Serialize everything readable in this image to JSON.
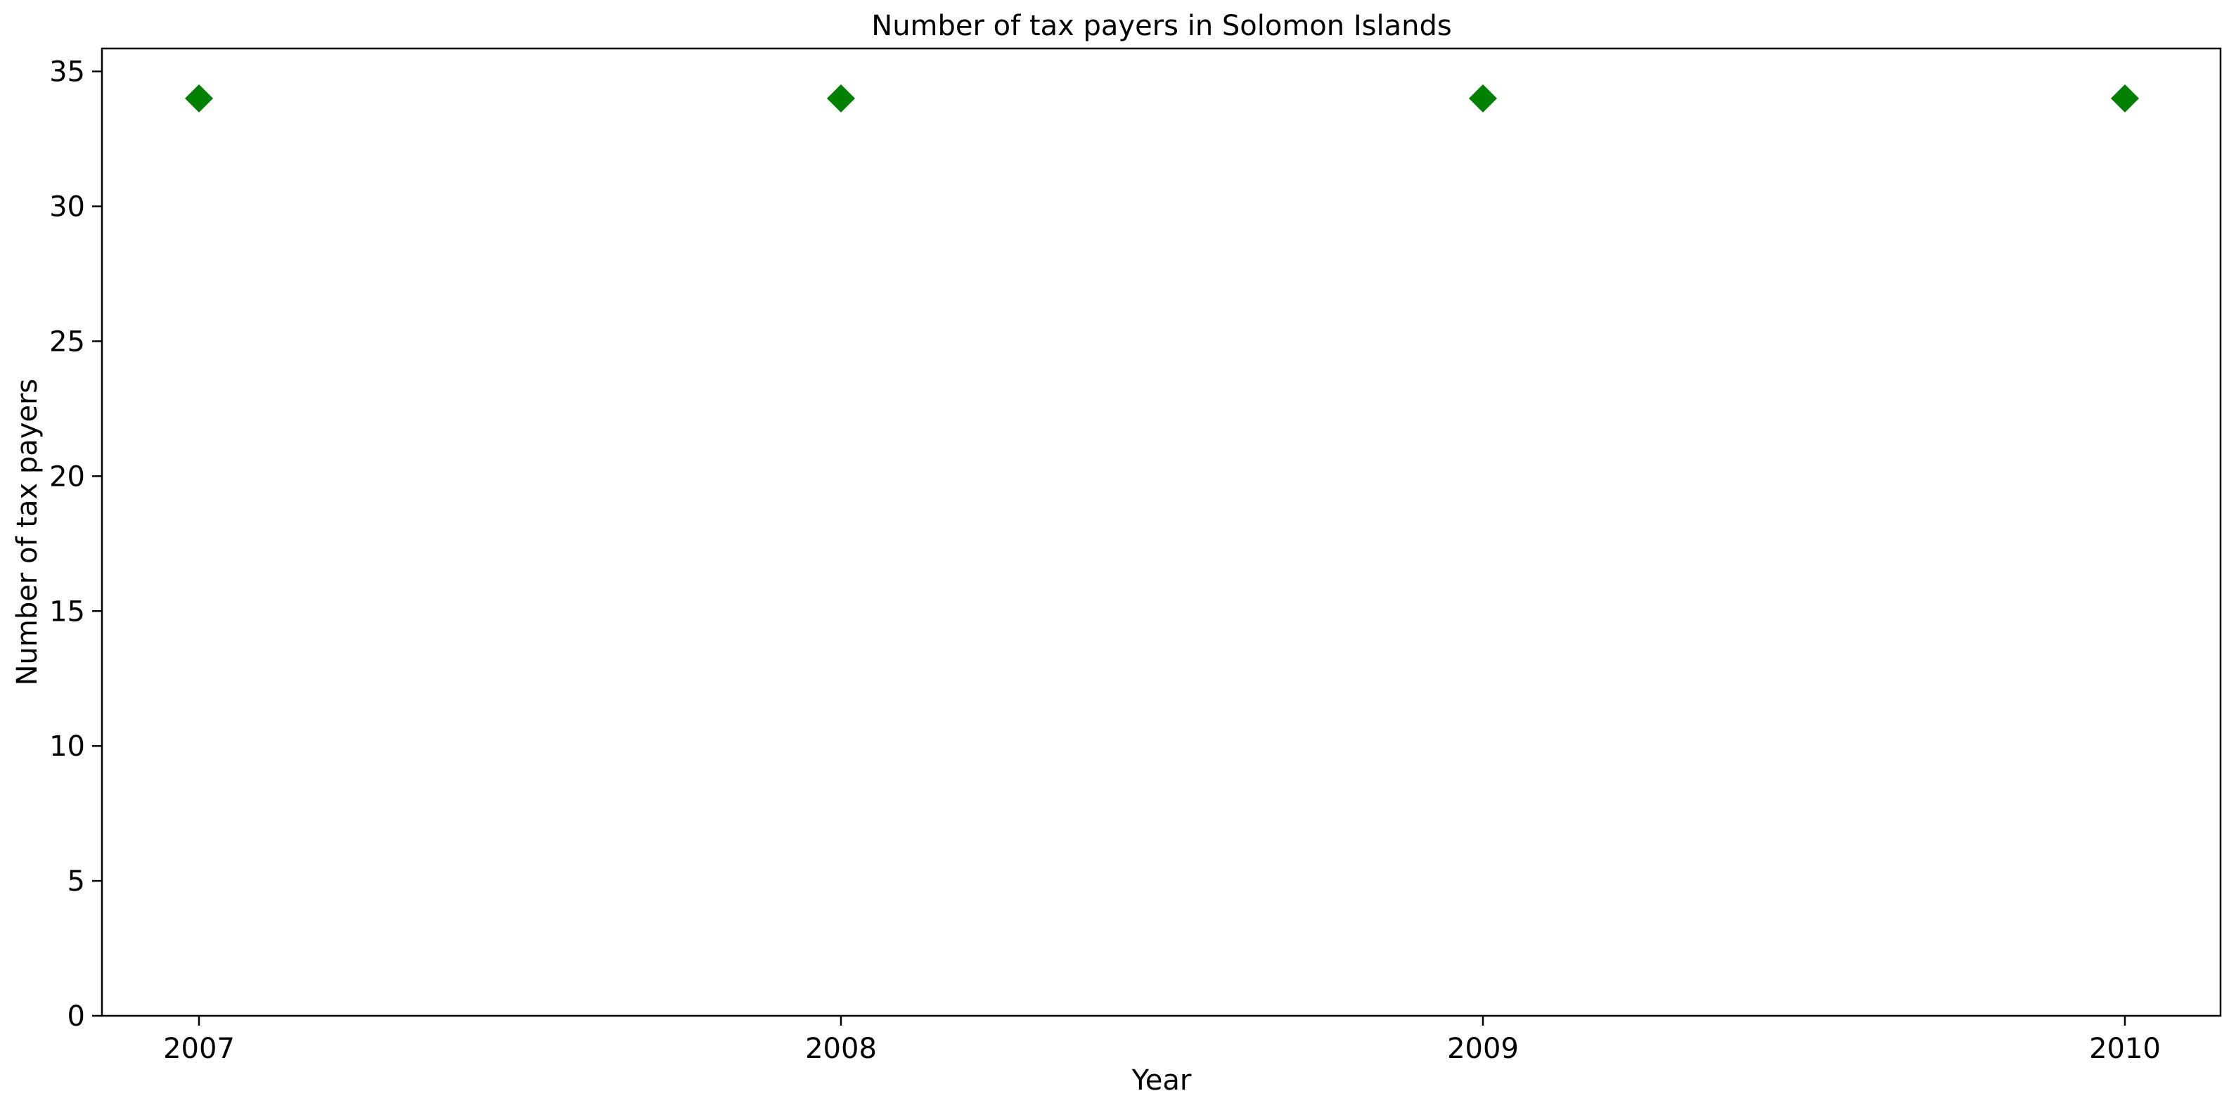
{
  "chart_data": {
    "type": "scatter",
    "title": "Number of tax payers in Solomon Islands",
    "xlabel": "Year",
    "ylabel": "Number of tax payers",
    "x": [
      "2007",
      "2008",
      "2009",
      "2010"
    ],
    "series": [
      {
        "values": [
          34,
          34,
          34,
          34
        ],
        "color": "#008000",
        "marker": "diamond"
      }
    ],
    "ylim": [
      0,
      35.85
    ],
    "yticks": [
      0,
      5,
      10,
      15,
      20,
      25,
      30,
      35
    ],
    "grid": false,
    "legend": "none"
  }
}
